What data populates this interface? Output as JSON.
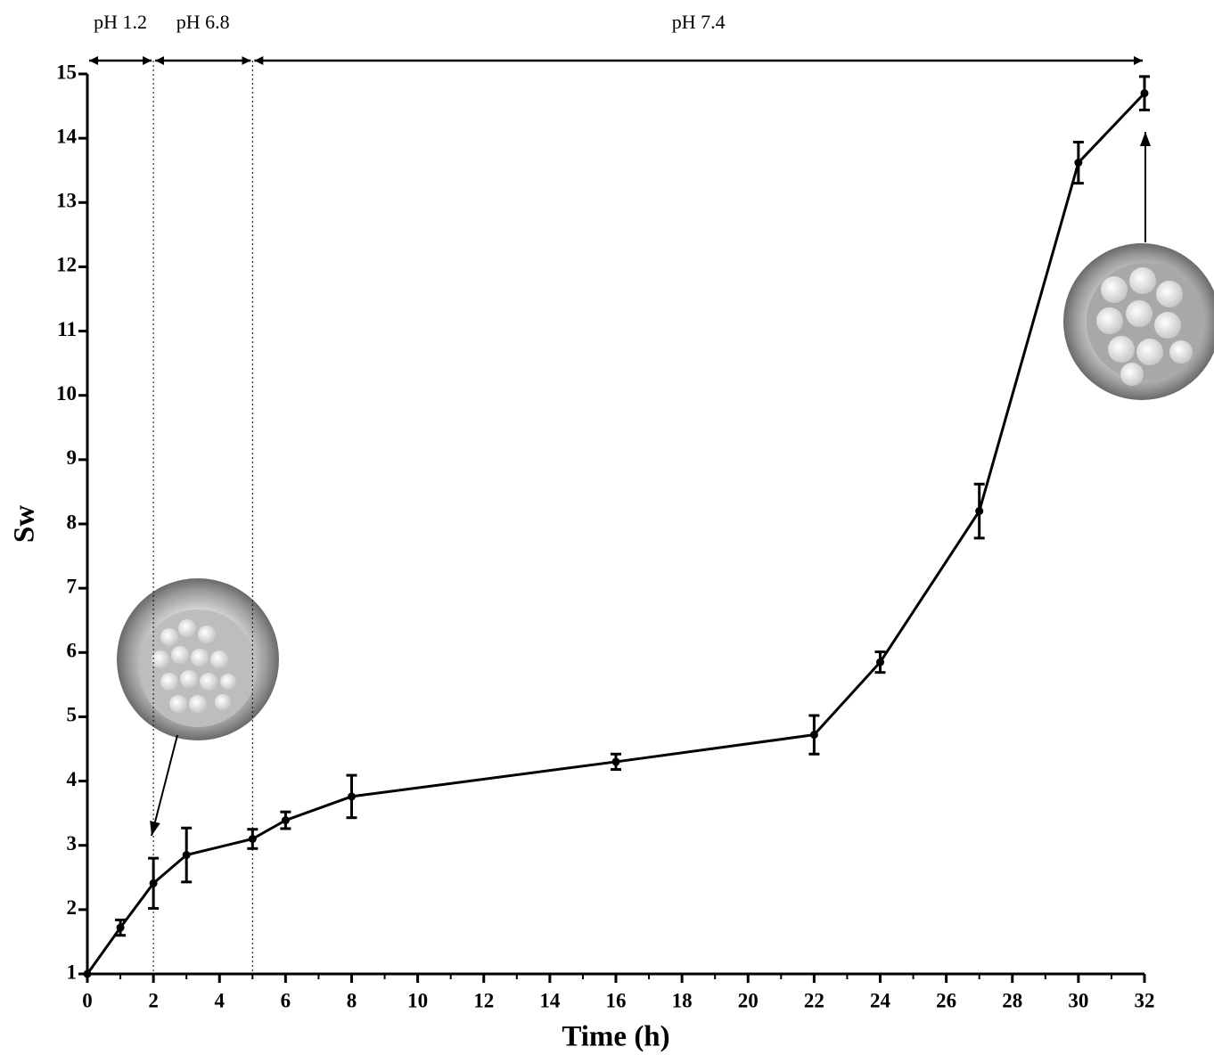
{
  "chart_data": {
    "type": "line",
    "x": [
      0,
      1,
      2,
      3,
      5,
      6,
      8,
      16,
      22,
      24,
      27,
      30,
      32
    ],
    "values": [
      1.0,
      1.72,
      2.41,
      2.85,
      3.1,
      3.39,
      3.76,
      4.3,
      4.72,
      5.85,
      8.2,
      13.62,
      14.7
    ],
    "errors": [
      0,
      0.12,
      0.39,
      0.42,
      0.15,
      0.13,
      0.33,
      0.12,
      0.3,
      0.16,
      0.42,
      0.32,
      0.26
    ],
    "color": "#000000",
    "xlabel": "Time (h)",
    "ylabel": "Sw",
    "xlim": [
      0,
      32
    ],
    "ylim": [
      1,
      15
    ],
    "xticks": [
      0,
      2,
      4,
      6,
      8,
      10,
      12,
      14,
      16,
      18,
      20,
      22,
      24,
      26,
      28,
      30,
      32
    ],
    "xminorticks": [
      1,
      3,
      5,
      7,
      9,
      11,
      13,
      15,
      17,
      19,
      21,
      23,
      25,
      27,
      29,
      31
    ],
    "yticks": [
      1,
      2,
      3,
      4,
      5,
      6,
      7,
      8,
      9,
      10,
      11,
      12,
      13,
      14,
      15
    ],
    "regions": [
      {
        "label": "pH 1.2",
        "start": 0,
        "end": 2
      },
      {
        "label": "pH 6.8",
        "start": 2,
        "end": 5
      },
      {
        "label": "pH 7.4",
        "start": 5,
        "end": 32
      }
    ]
  }
}
